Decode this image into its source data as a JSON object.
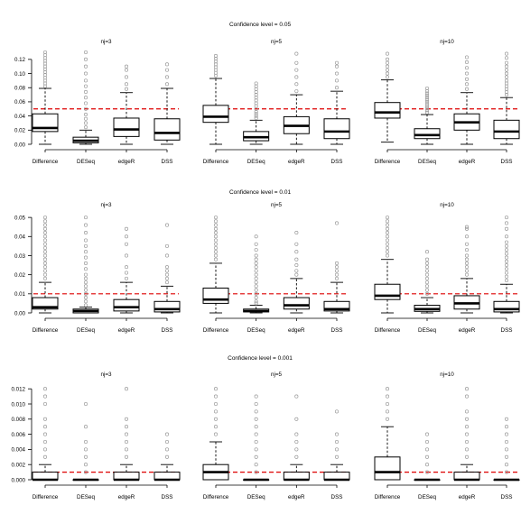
{
  "chart_data": [
    {
      "type": "boxplot",
      "title": "Confidence level = 0.05",
      "threshold": 0.05,
      "ylim": [
        0,
        0.13
      ],
      "yticks": [
        0.0,
        0.02,
        0.04,
        0.06,
        0.08,
        0.1,
        0.12
      ],
      "ytick_labels": [
        "0.00",
        "0.02",
        "0.04",
        "0.06",
        "0.08",
        "0.10",
        "0.12"
      ],
      "categories": [
        "Difference",
        "DESeq",
        "edgeR",
        "DSS"
      ],
      "panels": [
        {
          "label": "nj=3",
          "boxes": [
            {
              "min": 0.0,
              "q1": 0.018,
              "median": 0.023,
              "q3": 0.043,
              "max": 0.079,
              "outliers": [
                0.082,
                0.086,
                0.09,
                0.094,
                0.098,
                0.102,
                0.106,
                0.11,
                0.114,
                0.118,
                0.122,
                0.126,
                0.13
              ]
            },
            {
              "min": 0.0,
              "q1": 0.002,
              "median": 0.005,
              "q3": 0.01,
              "max": 0.02,
              "outliers": [
                0.024,
                0.03,
                0.036,
                0.042,
                0.05,
                0.058,
                0.066,
                0.074,
                0.082,
                0.09,
                0.1,
                0.11,
                0.12,
                0.13
              ]
            },
            {
              "min": 0.0,
              "q1": 0.011,
              "median": 0.021,
              "q3": 0.037,
              "max": 0.073,
              "outliers": [
                0.078,
                0.085,
                0.095,
                0.105,
                0.11
              ]
            },
            {
              "min": 0.0,
              "q1": 0.006,
              "median": 0.016,
              "q3": 0.036,
              "max": 0.079,
              "outliers": [
                0.085,
                0.095,
                0.105,
                0.113
              ]
            }
          ]
        },
        {
          "label": "nj=5",
          "boxes": [
            {
              "min": 0.0,
              "q1": 0.031,
              "median": 0.039,
              "q3": 0.055,
              "max": 0.093,
              "outliers": [
                0.097,
                0.101,
                0.105,
                0.109,
                0.113,
                0.117,
                0.121,
                0.125
              ]
            },
            {
              "min": 0.0,
              "q1": 0.005,
              "median": 0.01,
              "q3": 0.018,
              "max": 0.034,
              "outliers": [
                0.037,
                0.04,
                0.043,
                0.046,
                0.05,
                0.054,
                0.058,
                0.062,
                0.066,
                0.07,
                0.074,
                0.078,
                0.082,
                0.086
              ]
            },
            {
              "min": 0.0,
              "q1": 0.015,
              "median": 0.026,
              "q3": 0.039,
              "max": 0.07,
              "outliers": [
                0.075,
                0.085,
                0.095,
                0.105,
                0.115,
                0.128
              ]
            },
            {
              "min": 0.0,
              "q1": 0.008,
              "median": 0.018,
              "q3": 0.036,
              "max": 0.075,
              "outliers": [
                0.08,
                0.09,
                0.1,
                0.11,
                0.115
              ]
            }
          ]
        },
        {
          "label": "nj=10",
          "boxes": [
            {
              "min": 0.003,
              "q1": 0.037,
              "median": 0.045,
              "q3": 0.059,
              "max": 0.091,
              "outliers": [
                0.095,
                0.1,
                0.105,
                0.11,
                0.115,
                0.12,
                0.128
              ]
            },
            {
              "min": 0.0,
              "q1": 0.008,
              "median": 0.013,
              "q3": 0.022,
              "max": 0.042,
              "outliers": [
                0.045,
                0.048,
                0.051,
                0.054,
                0.057,
                0.06,
                0.063,
                0.066,
                0.069,
                0.072,
                0.075,
                0.079
              ]
            },
            {
              "min": 0.0,
              "q1": 0.02,
              "median": 0.031,
              "q3": 0.043,
              "max": 0.073,
              "outliers": [
                0.078,
                0.085,
                0.092,
                0.1,
                0.108,
                0.116,
                0.123
              ]
            },
            {
              "min": 0.0,
              "q1": 0.008,
              "median": 0.018,
              "q3": 0.034,
              "max": 0.066,
              "outliers": [
                0.07,
                0.074,
                0.078,
                0.082,
                0.086,
                0.09,
                0.095,
                0.1,
                0.105,
                0.11,
                0.115,
                0.122,
                0.128
              ]
            }
          ]
        }
      ]
    },
    {
      "type": "boxplot",
      "title": "Confidence level = 0.01",
      "threshold": 0.01,
      "ylim": [
        0,
        0.051
      ],
      "yticks": [
        0.0,
        0.01,
        0.02,
        0.03,
        0.04,
        0.05
      ],
      "ytick_labels": [
        "0.00",
        "0.01",
        "0.02",
        "0.03",
        "0.04",
        "0.05"
      ],
      "categories": [
        "Difference",
        "DESeq",
        "edgeR",
        "DSS"
      ],
      "panels": [
        {
          "label": "nj=3",
          "boxes": [
            {
              "min": 0.0,
              "q1": 0.002,
              "median": 0.003,
              "q3": 0.008,
              "max": 0.016,
              "outliers": [
                0.018,
                0.02,
                0.022,
                0.024,
                0.026,
                0.028,
                0.03,
                0.032,
                0.034,
                0.036,
                0.038,
                0.04,
                0.042,
                0.044,
                0.046,
                0.048,
                0.05
              ]
            },
            {
              "min": 0.0,
              "q1": 0.0,
              "median": 0.001,
              "q3": 0.002,
              "max": 0.003,
              "outliers": [
                0.004,
                0.006,
                0.008,
                0.01,
                0.012,
                0.014,
                0.016,
                0.018,
                0.02,
                0.023,
                0.026,
                0.029,
                0.032,
                0.035,
                0.038,
                0.042,
                0.046,
                0.05
              ]
            },
            {
              "min": 0.0,
              "q1": 0.001,
              "median": 0.003,
              "q3": 0.007,
              "max": 0.016,
              "outliers": [
                0.018,
                0.021,
                0.024,
                0.03,
                0.036,
                0.04,
                0.044
              ]
            },
            {
              "min": 0.0,
              "q1": 0.0005,
              "median": 0.002,
              "q3": 0.006,
              "max": 0.014,
              "outliers": [
                0.016,
                0.018,
                0.02,
                0.022,
                0.024,
                0.03,
                0.035,
                0.046
              ]
            }
          ]
        },
        {
          "label": "nj=5",
          "boxes": [
            {
              "min": 0.0,
              "q1": 0.005,
              "median": 0.007,
              "q3": 0.013,
              "max": 0.026,
              "outliers": [
                0.028,
                0.03,
                0.032,
                0.034,
                0.036,
                0.038,
                0.04,
                0.042,
                0.044,
                0.046,
                0.048,
                0.05
              ]
            },
            {
              "min": 0.0,
              "q1": 0.0005,
              "median": 0.001,
              "q3": 0.002,
              "max": 0.004,
              "outliers": [
                0.005,
                0.006,
                0.008,
                0.01,
                0.012,
                0.014,
                0.016,
                0.018,
                0.02,
                0.022,
                0.024,
                0.026,
                0.028,
                0.03,
                0.033,
                0.036,
                0.04
              ]
            },
            {
              "min": 0.0,
              "q1": 0.002,
              "median": 0.004,
              "q3": 0.008,
              "max": 0.018,
              "outliers": [
                0.02,
                0.022,
                0.025,
                0.028,
                0.032,
                0.036,
                0.042
              ]
            },
            {
              "min": 0.0,
              "q1": 0.001,
              "median": 0.002,
              "q3": 0.006,
              "max": 0.016,
              "outliers": [
                0.018,
                0.02,
                0.022,
                0.024,
                0.026,
                0.047
              ]
            }
          ]
        },
        {
          "label": "nj=10",
          "boxes": [
            {
              "min": 0.0,
              "q1": 0.007,
              "median": 0.009,
              "q3": 0.015,
              "max": 0.028,
              "outliers": [
                0.03,
                0.032,
                0.034,
                0.036,
                0.038,
                0.04,
                0.042,
                0.044,
                0.046,
                0.048,
                0.05
              ]
            },
            {
              "min": 0.0,
              "q1": 0.0008,
              "median": 0.002,
              "q3": 0.004,
              "max": 0.008,
              "outliers": [
                0.01,
                0.012,
                0.014,
                0.016,
                0.018,
                0.02,
                0.022,
                0.024,
                0.026,
                0.028,
                0.032
              ]
            },
            {
              "min": 0.0,
              "q1": 0.002,
              "median": 0.005,
              "q3": 0.009,
              "max": 0.018,
              "outliers": [
                0.02,
                0.022,
                0.024,
                0.026,
                0.028,
                0.03,
                0.033,
                0.036,
                0.04,
                0.044,
                0.045
              ]
            },
            {
              "min": 0.0,
              "q1": 0.0005,
              "median": 0.002,
              "q3": 0.006,
              "max": 0.015,
              "outliers": [
                0.017,
                0.019,
                0.021,
                0.023,
                0.025,
                0.027,
                0.029,
                0.031,
                0.033,
                0.035,
                0.037,
                0.04,
                0.044,
                0.047,
                0.05
              ]
            }
          ]
        }
      ]
    },
    {
      "type": "boxplot",
      "title": "Confidence level = 0.001",
      "threshold": 0.001,
      "ylim": [
        0,
        0.0125
      ],
      "yticks": [
        0.0,
        0.002,
        0.004,
        0.006,
        0.008,
        0.01,
        0.012
      ],
      "ytick_labels": [
        "0.000",
        "0.002",
        "0.004",
        "0.006",
        "0.008",
        "0.010",
        "0.012"
      ],
      "categories": [
        "Difference",
        "DESeq",
        "edgeR",
        "DSS"
      ],
      "panels": [
        {
          "label": "nj=3",
          "boxes": [
            {
              "min": 0.0,
              "q1": 0.0,
              "median": 0.0,
              "q3": 0.001,
              "max": 0.002,
              "outliers": [
                0.003,
                0.004,
                0.005,
                0.006,
                0.007,
                0.008,
                0.01,
                0.011,
                0.012
              ]
            },
            {
              "min": 0.0,
              "q1": 0.0,
              "median": 0.0,
              "q3": 0.0,
              "max": 0.0,
              "outliers": [
                0.001,
                0.002,
                0.003,
                0.004,
                0.005,
                0.007,
                0.01
              ]
            },
            {
              "min": 0.0,
              "q1": 0.0,
              "median": 0.0,
              "q3": 0.001,
              "max": 0.002,
              "outliers": [
                0.003,
                0.004,
                0.005,
                0.006,
                0.007,
                0.008,
                0.012
              ]
            },
            {
              "min": 0.0,
              "q1": 0.0,
              "median": 0.0,
              "q3": 0.001,
              "max": 0.002,
              "outliers": [
                0.003,
                0.004,
                0.005,
                0.006
              ]
            }
          ]
        },
        {
          "label": "nj=5",
          "boxes": [
            {
              "min": 0.0,
              "q1": 0.0,
              "median": 0.001,
              "q3": 0.002,
              "max": 0.005,
              "outliers": [
                0.006,
                0.007,
                0.008,
                0.009,
                0.01,
                0.011,
                0.012
              ]
            },
            {
              "min": 0.0,
              "q1": 0.0,
              "median": 0.0,
              "q3": 0.0,
              "max": 0.0,
              "outliers": [
                0.001,
                0.002,
                0.003,
                0.004,
                0.005,
                0.006,
                0.007,
                0.008,
                0.009,
                0.01,
                0.011
              ]
            },
            {
              "min": 0.0,
              "q1": 0.0,
              "median": 0.0,
              "q3": 0.001,
              "max": 0.002,
              "outliers": [
                0.003,
                0.004,
                0.005,
                0.006,
                0.008,
                0.011
              ]
            },
            {
              "min": 0.0,
              "q1": 0.0,
              "median": 0.0,
              "q3": 0.001,
              "max": 0.002,
              "outliers": [
                0.003,
                0.004,
                0.005,
                0.006,
                0.009
              ]
            }
          ]
        },
        {
          "label": "nj=10",
          "boxes": [
            {
              "min": 0.0,
              "q1": 0.0,
              "median": 0.001,
              "q3": 0.003,
              "max": 0.007,
              "outliers": [
                0.008,
                0.009,
                0.01,
                0.011,
                0.012
              ]
            },
            {
              "min": 0.0,
              "q1": 0.0,
              "median": 0.0,
              "q3": 0.0,
              "max": 0.0,
              "outliers": [
                0.001,
                0.002,
                0.003,
                0.004,
                0.005,
                0.006
              ]
            },
            {
              "min": 0.0,
              "q1": 0.0,
              "median": 0.0,
              "q3": 0.001,
              "max": 0.002,
              "outliers": [
                0.003,
                0.004,
                0.005,
                0.006,
                0.007,
                0.008,
                0.009,
                0.011,
                0.012
              ]
            },
            {
              "min": 0.0,
              "q1": 0.0,
              "median": 0.0,
              "q3": 0.0,
              "max": 0.0,
              "outliers": [
                0.001,
                0.002,
                0.003,
                0.004,
                0.005,
                0.006,
                0.007,
                0.008
              ]
            }
          ]
        }
      ]
    }
  ],
  "colors": {
    "threshold_line": "#dd0000",
    "outlier": "#9a9a9a",
    "box": "#000000"
  }
}
